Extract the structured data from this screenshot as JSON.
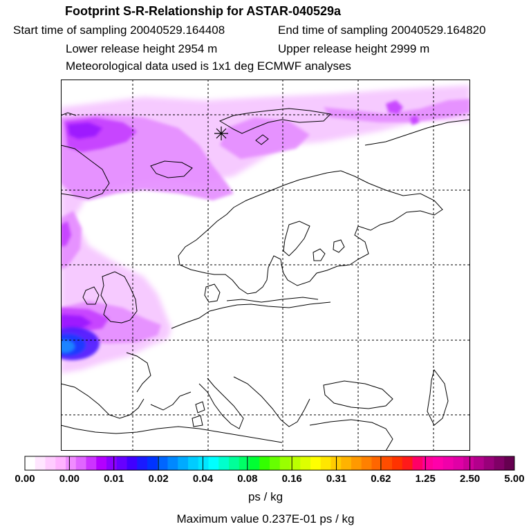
{
  "header": {
    "title": "Footprint S-R-Relationship for ASTAR-040529a",
    "start_time": "Start time of sampling 20040529.164408",
    "end_time": "End time of sampling 20040529.164820",
    "lower_release": "Lower release height 2954 m",
    "upper_release": "Upper release height 2999 m",
    "meteo": "Meteorological data used is 1x1 deg ECMWF analyses"
  },
  "map": {
    "release_marker": "asterisk-icon",
    "grid": "dashed lat/lon lines",
    "colors": {
      "coast": "#000000",
      "grid": "#000000",
      "frame": "#000000"
    }
  },
  "colorbar": {
    "labels": [
      "0.00",
      "0.00",
      "0.01",
      "0.02",
      "0.04",
      "0.08",
      "0.16",
      "0.31",
      "0.62",
      "1.25",
      "2.50",
      "5.00"
    ],
    "colors": [
      "#ffffff",
      "#ffe6ff",
      "#ffccff",
      "#ffb3ff",
      "#f08cff",
      "#e066ff",
      "#cc33ff",
      "#b300ff",
      "#8c00ff",
      "#6600ff",
      "#4000ff",
      "#1a1aff",
      "#0033ff",
      "#0066ff",
      "#0088ff",
      "#00aaff",
      "#00ccff",
      "#00e6ff",
      "#00ffff",
      "#00ffcc",
      "#00ff99",
      "#00ff66",
      "#00ff33",
      "#33ff00",
      "#66ff00",
      "#99ff00",
      "#bbff00",
      "#ddff00",
      "#ffff00",
      "#ffe600",
      "#ffcc00",
      "#ffb300",
      "#ff9900",
      "#ff8000",
      "#ff6600",
      "#ff4d00",
      "#ff3300",
      "#ff1a1a",
      "#ff0066",
      "#ff0099",
      "#ff00aa",
      "#f000aa",
      "#e000a6",
      "#cc0099",
      "#b3008c",
      "#99007a",
      "#800066",
      "#660050"
    ],
    "unit": "ps / kg",
    "max_value": "Maximum value  0.237E-01 ps / kg"
  }
}
